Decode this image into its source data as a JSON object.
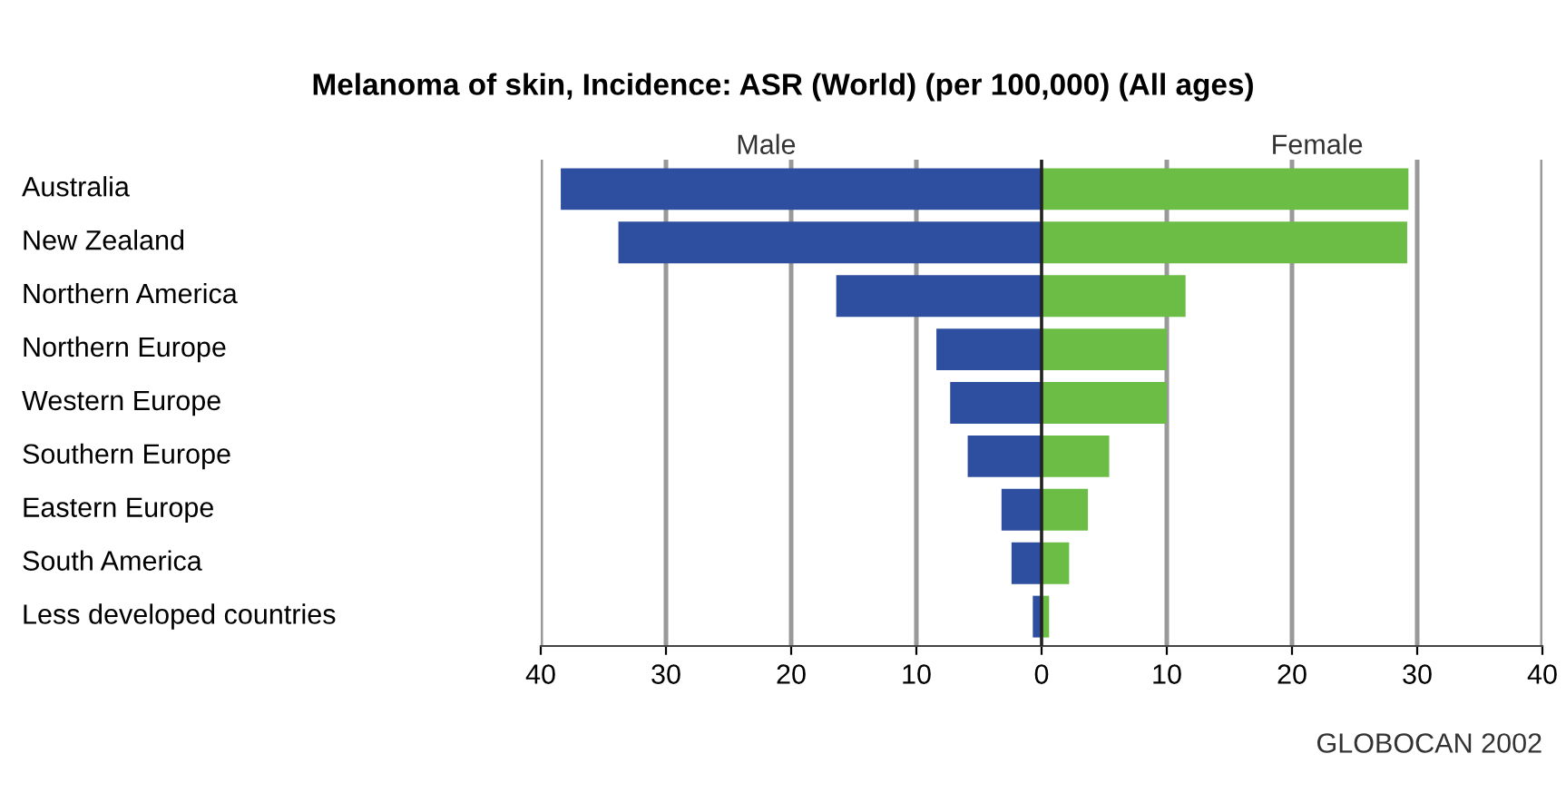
{
  "chart_data": {
    "type": "bar",
    "orientation": "horizontal",
    "stacked": true,
    "title": "Melanoma of skin, Incidence: ASR (World) (per 100,000) (All ages)",
    "categories": [
      "Australia",
      "New Zealand",
      "Northern America",
      "Northern Europe",
      "Western Europe",
      "Southern Europe",
      "Eastern Europe",
      "South America",
      "Less developed countries"
    ],
    "series": [
      {
        "name": "Male",
        "color": "#2e4f9f",
        "values": [
          -38.4,
          -33.8,
          -16.4,
          -8.4,
          -7.3,
          -5.9,
          -3.2,
          -2.4,
          -0.7
        ]
      },
      {
        "name": "Female",
        "color": "#6bbd45",
        "values": [
          29.3,
          29.2,
          11.5,
          10.0,
          10.0,
          5.4,
          3.7,
          2.2,
          0.6
        ]
      }
    ],
    "xlim": [
      -40,
      40
    ],
    "xticks": [
      {
        "value": -40,
        "label": "40"
      },
      {
        "value": -30,
        "label": "30"
      },
      {
        "value": -20,
        "label": "20"
      },
      {
        "value": -10,
        "label": "10"
      },
      0,
      10,
      20,
      30,
      40
    ],
    "grid": "x",
    "legend": false,
    "annotations": [
      "GLOBOCAN 2002"
    ]
  }
}
